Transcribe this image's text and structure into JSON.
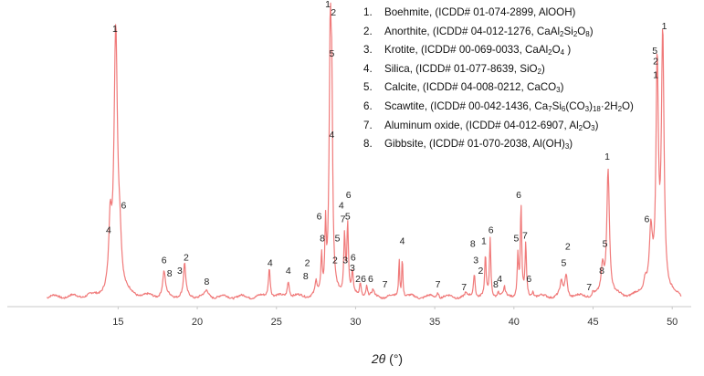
{
  "chart_data": {
    "type": "line",
    "xlabel_symbol": "2θ",
    "xlabel_unit": "(°)",
    "xlim": [
      8.0,
      51.2
    ],
    "xticks": [
      15,
      20,
      25,
      30,
      35,
      40,
      45,
      50
    ],
    "grid": false,
    "color": "#f07a7a",
    "series": [
      {
        "values_description_none": "",
        "peaks": [
          {
            "x": 14.5,
            "h": 0.23,
            "w": 0.1
          },
          {
            "x": 14.85,
            "h": 0.96,
            "w": 0.13
          },
          {
            "x": 15.1,
            "h": 0.16,
            "w": 0.13
          },
          {
            "x": 17.9,
            "h": 0.09,
            "w": 0.1
          },
          {
            "x": 19.2,
            "h": 0.12,
            "w": 0.08
          },
          {
            "x": 20.6,
            "h": 0.02,
            "w": 0.12
          },
          {
            "x": 24.55,
            "h": 0.11,
            "w": 0.07
          },
          {
            "x": 25.75,
            "h": 0.06,
            "w": 0.08
          },
          {
            "x": 27.5,
            "h": 0.05,
            "w": 0.06
          },
          {
            "x": 27.85,
            "h": 0.14,
            "w": 0.05
          },
          {
            "x": 28.1,
            "h": 0.24,
            "w": 0.05
          },
          {
            "x": 28.4,
            "h": 0.93,
            "w": 0.08
          },
          {
            "x": 28.5,
            "h": 0.55,
            "w": 0.06
          },
          {
            "x": 29.3,
            "h": 0.22,
            "w": 0.06
          },
          {
            "x": 29.5,
            "h": 0.26,
            "w": 0.06
          },
          {
            "x": 29.8,
            "h": 0.08,
            "w": 0.06
          },
          {
            "x": 30.3,
            "h": 0.05,
            "w": 0.06
          },
          {
            "x": 30.7,
            "h": 0.04,
            "w": 0.06
          },
          {
            "x": 31.1,
            "h": 0.02,
            "w": 0.07
          },
          {
            "x": 32.75,
            "h": 0.14,
            "w": 0.04
          },
          {
            "x": 32.95,
            "h": 0.15,
            "w": 0.04
          },
          {
            "x": 35.2,
            "h": 0.02,
            "w": 0.06
          },
          {
            "x": 36.95,
            "h": 0.01,
            "w": 0.06
          },
          {
            "x": 37.5,
            "h": 0.09,
            "w": 0.06
          },
          {
            "x": 38.2,
            "h": 0.15,
            "w": 0.05
          },
          {
            "x": 38.5,
            "h": 0.21,
            "w": 0.05
          },
          {
            "x": 39.0,
            "h": 0.02,
            "w": 0.06
          },
          {
            "x": 39.4,
            "h": 0.03,
            "w": 0.06
          },
          {
            "x": 40.25,
            "h": 0.15,
            "w": 0.05
          },
          {
            "x": 40.45,
            "h": 0.33,
            "w": 0.05
          },
          {
            "x": 40.75,
            "h": 0.19,
            "w": 0.05
          },
          {
            "x": 41.2,
            "h": 0.02,
            "w": 0.06
          },
          {
            "x": 43.0,
            "h": 0.05,
            "w": 0.1
          },
          {
            "x": 43.3,
            "h": 0.08,
            "w": 0.09
          },
          {
            "x": 45.0,
            "h": 0.015,
            "w": 0.08
          },
          {
            "x": 45.6,
            "h": 0.1,
            "w": 0.1
          },
          {
            "x": 45.95,
            "h": 0.47,
            "w": 0.1
          },
          {
            "x": 48.3,
            "h": 0.05,
            "w": 0.12
          },
          {
            "x": 48.65,
            "h": 0.22,
            "w": 0.12
          },
          {
            "x": 49.05,
            "h": 0.82,
            "w": 0.09
          },
          {
            "x": 49.4,
            "h": 0.95,
            "w": 0.1
          }
        ]
      }
    ],
    "peak_labels": [
      {
        "x": 14.8,
        "y": 0.99,
        "text": "1"
      },
      {
        "x": 14.4,
        "y": 0.25,
        "text": "4"
      },
      {
        "x": 15.35,
        "y": 0.34,
        "text": "6"
      },
      {
        "x": 17.9,
        "y": 0.14,
        "text": "6"
      },
      {
        "x": 18.25,
        "y": 0.09,
        "text": "8"
      },
      {
        "x": 18.9,
        "y": 0.1,
        "text": "3"
      },
      {
        "x": 19.3,
        "y": 0.15,
        "text": "2"
      },
      {
        "x": 20.6,
        "y": 0.06,
        "text": "8"
      },
      {
        "x": 24.6,
        "y": 0.13,
        "text": "4"
      },
      {
        "x": 25.75,
        "y": 0.1,
        "text": "4"
      },
      {
        "x": 26.95,
        "y": 0.13,
        "text": "2"
      },
      {
        "x": 26.85,
        "y": 0.08,
        "text": "8"
      },
      {
        "x": 27.7,
        "y": 0.3,
        "text": "6"
      },
      {
        "x": 27.9,
        "y": 0.22,
        "text": "8"
      },
      {
        "x": 28.25,
        "y": 1.08,
        "text": "1"
      },
      {
        "x": 28.6,
        "y": 1.05,
        "text": "2"
      },
      {
        "x": 28.5,
        "y": 0.9,
        "text": "5"
      },
      {
        "x": 28.5,
        "y": 0.6,
        "text": "4"
      },
      {
        "x": 29.1,
        "y": 0.34,
        "text": "4"
      },
      {
        "x": 29.2,
        "y": 0.29,
        "text": "7"
      },
      {
        "x": 29.5,
        "y": 0.3,
        "text": "5"
      },
      {
        "x": 29.55,
        "y": 0.38,
        "text": "6"
      },
      {
        "x": 28.85,
        "y": 0.22,
        "text": "5"
      },
      {
        "x": 28.7,
        "y": 0.14,
        "text": "2"
      },
      {
        "x": 29.35,
        "y": 0.14,
        "text": "3"
      },
      {
        "x": 29.85,
        "y": 0.15,
        "text": "6"
      },
      {
        "x": 29.8,
        "y": 0.11,
        "text": "3"
      },
      {
        "x": 30.15,
        "y": 0.07,
        "text": "2"
      },
      {
        "x": 30.5,
        "y": 0.07,
        "text": "6"
      },
      {
        "x": 30.95,
        "y": 0.07,
        "text": "6"
      },
      {
        "x": 31.85,
        "y": 0.05,
        "text": "7"
      },
      {
        "x": 32.95,
        "y": 0.21,
        "text": "4"
      },
      {
        "x": 35.2,
        "y": 0.05,
        "text": "7"
      },
      {
        "x": 36.85,
        "y": 0.04,
        "text": "7"
      },
      {
        "x": 37.4,
        "y": 0.2,
        "text": "8"
      },
      {
        "x": 37.6,
        "y": 0.14,
        "text": "3"
      },
      {
        "x": 38.1,
        "y": 0.21,
        "text": "1"
      },
      {
        "x": 38.55,
        "y": 0.25,
        "text": "6"
      },
      {
        "x": 37.9,
        "y": 0.1,
        "text": "2"
      },
      {
        "x": 39.1,
        "y": 0.07,
        "text": "4"
      },
      {
        "x": 38.85,
        "y": 0.05,
        "text": "8"
      },
      {
        "x": 40.3,
        "y": 0.38,
        "text": "6"
      },
      {
        "x": 40.15,
        "y": 0.22,
        "text": "5"
      },
      {
        "x": 40.7,
        "y": 0.23,
        "text": "7"
      },
      {
        "x": 40.95,
        "y": 0.07,
        "text": "6"
      },
      {
        "x": 43.4,
        "y": 0.19,
        "text": "2"
      },
      {
        "x": 43.15,
        "y": 0.13,
        "text": "5"
      },
      {
        "x": 44.75,
        "y": 0.04,
        "text": "7"
      },
      {
        "x": 45.9,
        "y": 0.52,
        "text": "1"
      },
      {
        "x": 45.75,
        "y": 0.2,
        "text": "5"
      },
      {
        "x": 45.55,
        "y": 0.1,
        "text": "8"
      },
      {
        "x": 48.4,
        "y": 0.29,
        "text": "6"
      },
      {
        "x": 48.9,
        "y": 0.91,
        "text": "5"
      },
      {
        "x": 48.95,
        "y": 0.87,
        "text": "2"
      },
      {
        "x": 48.95,
        "y": 0.82,
        "text": "1"
      },
      {
        "x": 49.5,
        "y": 1.0,
        "text": "1"
      }
    ]
  },
  "legend": [
    {
      "num": "1.",
      "parts": [
        "Boehmite, (ICDD# 01-074-2899, AlOOH)"
      ]
    },
    {
      "num": "2.",
      "parts": [
        "Anorthite, (ICDD# 04-012-1276,  CaAl",
        {
          "sub": "2"
        },
        "Si",
        {
          "sub": "2"
        },
        "O",
        {
          "sub": "8"
        },
        ")"
      ]
    },
    {
      "num": "3.",
      "parts": [
        "Krotite, (ICDD# 00-069-0033, CaAl",
        {
          "sub": "2"
        },
        "O",
        {
          "sub": "4"
        },
        " )"
      ]
    },
    {
      "num": "4.",
      "parts": [
        "Silica, (ICDD# 01-077-8639, SiO",
        {
          "sub": "2"
        },
        ")"
      ]
    },
    {
      "num": "5.",
      "parts": [
        "Calcite, (ICDD# 04-008-0212, CaCO",
        {
          "sub": "3"
        },
        ")"
      ]
    },
    {
      "num": "6.",
      "parts": [
        "Scawtite, (ICDD# 00-042-1436,  Ca",
        {
          "sub": "7"
        },
        "Si",
        {
          "sub": "6"
        },
        "(CO",
        {
          "sub": "3"
        },
        ")",
        {
          "sub": "18"
        },
        "·2H",
        {
          "sub": "2"
        },
        "O)"
      ]
    },
    {
      "num": "7.",
      "parts": [
        "Aluminum oxide, (ICDD# 04-012-6907,  Al",
        {
          "sub": "2"
        },
        "O",
        {
          "sub": "3"
        },
        ")"
      ]
    },
    {
      "num": "8.",
      "parts": [
        "Gibbsite, (ICDD# 01-070-2038, Al(OH)",
        {
          "sub": "3"
        },
        ")"
      ]
    }
  ]
}
